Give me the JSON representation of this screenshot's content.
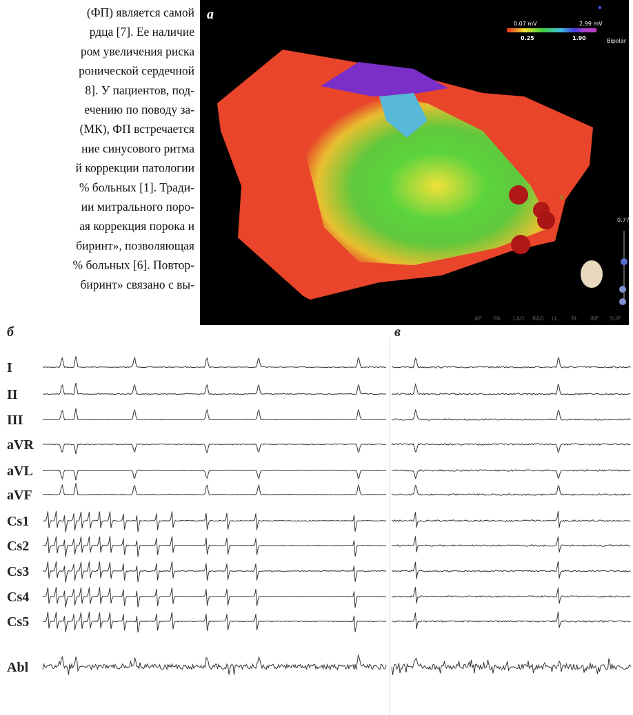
{
  "text_lines": [
    "(ФП) является самой",
    "рдца [7]. Ее наличие",
    "ром увеличения риска",
    "ронической сердечной",
    "8]. У пациентов, под-",
    "ечению по поводу за-",
    "(МК), ФП встречается",
    "ние синусового ритма",
    "й коррекции патологии",
    "% больных [1]. Тради-",
    "ии митрального поро-",
    "ая коррекция порока и",
    "биринт», позволяющая",
    "% больных [6]. Повтор-",
    "биринт» связано с вы-"
  ],
  "figure": {
    "panel_a": {
      "label": "а",
      "scale_min": "0.07 mV",
      "scale_max": "2.99 mV",
      "marker_low": "0.25",
      "marker_high": "1.90",
      "mode": "Bipolar",
      "marker_r": "R",
      "zoom": "0.77",
      "views": [
        "AP",
        "PA",
        "LAO",
        "RAO",
        "LL",
        "RL",
        "INF",
        "SUP"
      ]
    },
    "panel_b_label": "б",
    "panel_c_label": "в",
    "leads": [
      "I",
      "II",
      "III",
      "aVR",
      "aVL",
      "aVF",
      "Cs1",
      "Cs2",
      "Cs3",
      "Cs4",
      "Cs5",
      "Abl"
    ]
  }
}
